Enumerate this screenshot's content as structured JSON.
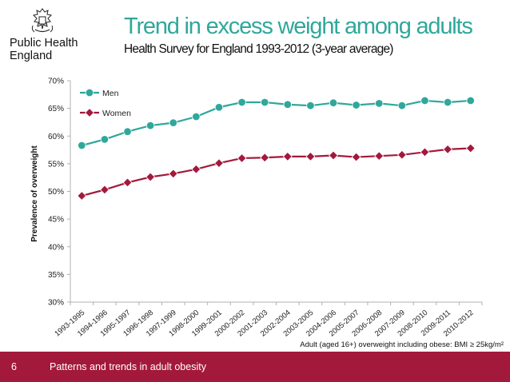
{
  "header": {
    "org_name": "Public Health\nEngland",
    "title": "Trend in excess weight among adults",
    "subtitle": "Health Survey for England 1993-2012 (3-year average)"
  },
  "footer": {
    "slide_number": "6",
    "text": "Patterns and trends in adult obesity"
  },
  "colors": {
    "accent": "#2fa89b",
    "footer_bar": "#a3193b",
    "men_series": "#2fa89b",
    "women_series": "#a3193b"
  },
  "chart_data": {
    "type": "line",
    "title": "",
    "ylabel": "Prevalence of overweight",
    "xlabel": "Adult (aged 16+) overweight including obese: BMI ≥ 25kg/m²",
    "ylim": [
      30,
      70
    ],
    "yticks": [
      "30%",
      "35%",
      "40%",
      "45%",
      "50%",
      "55%",
      "60%",
      "65%",
      "70%"
    ],
    "grid": false,
    "legend_position": "top-left",
    "categories": [
      "1993-1995",
      "1994-1996",
      "1995-1997",
      "1996-1998",
      "1997-1999",
      "1998-2000",
      "1999-2001",
      "2000-2002",
      "2001-2003",
      "2002-2004",
      "2003-2005",
      "2004-2006",
      "2005-2007",
      "2006-2008",
      "2007-2009",
      "2008-2010",
      "2009-2011",
      "2010-2012"
    ],
    "series": [
      {
        "name": "Men",
        "color": "#2fa89b",
        "marker": "circle",
        "values": [
          58.3,
          59.4,
          60.8,
          61.9,
          62.4,
          63.5,
          65.2,
          66.1,
          66.1,
          65.7,
          65.5,
          66.0,
          65.6,
          65.9,
          65.5,
          66.4,
          66.1,
          66.4
        ]
      },
      {
        "name": "Women",
        "color": "#a3193b",
        "marker": "diamond",
        "values": [
          49.2,
          50.3,
          51.6,
          52.6,
          53.2,
          54.0,
          55.1,
          56.0,
          56.1,
          56.3,
          56.3,
          56.5,
          56.2,
          56.4,
          56.6,
          57.1,
          57.6,
          57.8
        ]
      }
    ]
  }
}
